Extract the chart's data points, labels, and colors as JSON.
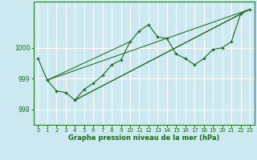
{
  "title": "Graphe pression niveau de la mer (hPa)",
  "bg_color": "#cce8f0",
  "grid_color": "#ffffff",
  "line_color": "#1a6b1a",
  "xlim": [
    -0.5,
    23.5
  ],
  "ylim": [
    997.5,
    1001.5
  ],
  "yticks": [
    998,
    999,
    1000
  ],
  "xticks": [
    0,
    1,
    2,
    3,
    4,
    5,
    6,
    7,
    8,
    9,
    10,
    11,
    12,
    13,
    14,
    15,
    16,
    17,
    18,
    19,
    20,
    21,
    22,
    23
  ],
  "series": [
    [
      0,
      999.65
    ],
    [
      1,
      998.95
    ],
    [
      2,
      998.6
    ],
    [
      3,
      998.55
    ],
    [
      4,
      998.3
    ],
    [
      5,
      998.65
    ],
    [
      6,
      998.85
    ],
    [
      7,
      999.1
    ],
    [
      8,
      999.45
    ],
    [
      9,
      999.6
    ],
    [
      10,
      1000.2
    ],
    [
      11,
      1000.55
    ],
    [
      12,
      1000.75
    ],
    [
      13,
      1000.35
    ],
    [
      14,
      1000.3
    ],
    [
      15,
      999.8
    ],
    [
      16,
      999.65
    ],
    [
      17,
      999.45
    ],
    [
      18,
      999.65
    ],
    [
      19,
      999.95
    ],
    [
      20,
      1000.0
    ],
    [
      21,
      1000.2
    ],
    [
      22,
      1001.1
    ],
    [
      23,
      1001.25
    ]
  ],
  "trend_lines": [
    {
      "x": [
        1,
        10
      ],
      "y": [
        998.95,
        1000.2
      ]
    },
    {
      "x": [
        1,
        23
      ],
      "y": [
        998.95,
        1001.25
      ]
    },
    {
      "x": [
        4,
        23
      ],
      "y": [
        998.3,
        1001.25
      ]
    },
    {
      "x": [
        4,
        22
      ],
      "y": [
        998.3,
        1001.1
      ]
    }
  ]
}
